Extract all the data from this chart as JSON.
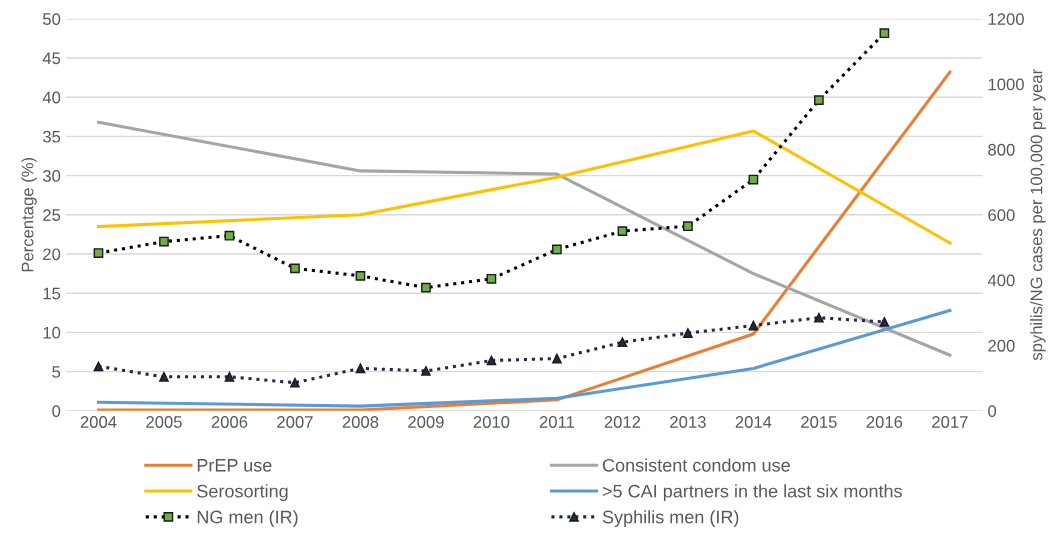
{
  "chart_data": {
    "type": "line",
    "ylabel": "Percentage (%)",
    "y2label": "spyhilis/NG cases per 100,000 per year",
    "xlim": [
      2003.5,
      2017.5
    ],
    "xticks": [
      2004,
      2005,
      2006,
      2007,
      2008,
      2009,
      2010,
      2011,
      2012,
      2013,
      2014,
      2015,
      2016,
      2017
    ],
    "ylim": [
      0,
      50
    ],
    "yticks": [
      0,
      5,
      10,
      15,
      20,
      25,
      30,
      35,
      40,
      45,
      50
    ],
    "y2lim": [
      0,
      1200
    ],
    "y2ticks": [
      0,
      200,
      400,
      600,
      800,
      1000,
      1200
    ],
    "grid": "y",
    "legend": "bottom",
    "series": [
      {
        "name": "PrEP use",
        "color": "#ed7d31",
        "x": [
          2004,
          2008,
          2011,
          2014,
          2017
        ],
        "values": [
          0.1,
          0.1,
          1.4,
          9.8,
          43.2
        ],
        "marker": "none",
        "line_style": "solid"
      },
      {
        "name": "Consistent condom use",
        "color": "#a5a5a5",
        "x": [
          2004,
          2008,
          2011,
          2014,
          2017
        ],
        "values": [
          36.8,
          30.6,
          30.2,
          17.5,
          7.1
        ],
        "marker": "none",
        "line_style": "solid"
      },
      {
        "name": "Serosorting",
        "color": "#ffc000",
        "x": [
          2004,
          2008,
          2011,
          2014,
          2017
        ],
        "values": [
          23.5,
          25.0,
          29.8,
          35.7,
          21.4
        ],
        "marker": "none",
        "line_style": "solid"
      },
      {
        "name": ">5 CAI partners in the last six months",
        "color": "#5b9bd5",
        "x": [
          2004,
          2008,
          2011,
          2014,
          2017
        ],
        "values": [
          1.1,
          0.6,
          1.6,
          5.4,
          12.8
        ],
        "marker": "none",
        "line_style": "solid"
      },
      {
        "name": "NG men (IR)",
        "color": "#000000",
        "axis": "y2",
        "x": [
          2004,
          2005,
          2006,
          2007,
          2008,
          2009,
          2010,
          2011,
          2012,
          2013,
          2014,
          2015,
          2016
        ],
        "values": [
          483,
          518,
          536,
          436,
          413,
          377,
          404,
          494,
          550,
          565,
          708,
          951,
          1156
        ],
        "marker": "square",
        "line_style": "dotted"
      },
      {
        "name": "Syphilis men (IR)",
        "color": "#1f2a44",
        "axis": "y2",
        "x": [
          2004,
          2005,
          2006,
          2007,
          2008,
          2009,
          2010,
          2011,
          2012,
          2013,
          2014,
          2015,
          2016
        ],
        "values": [
          136,
          104,
          104,
          86,
          130,
          122,
          154,
          160,
          210,
          238,
          261,
          285,
          272
        ],
        "marker": "triangle",
        "line_style": "dotted"
      }
    ]
  }
}
